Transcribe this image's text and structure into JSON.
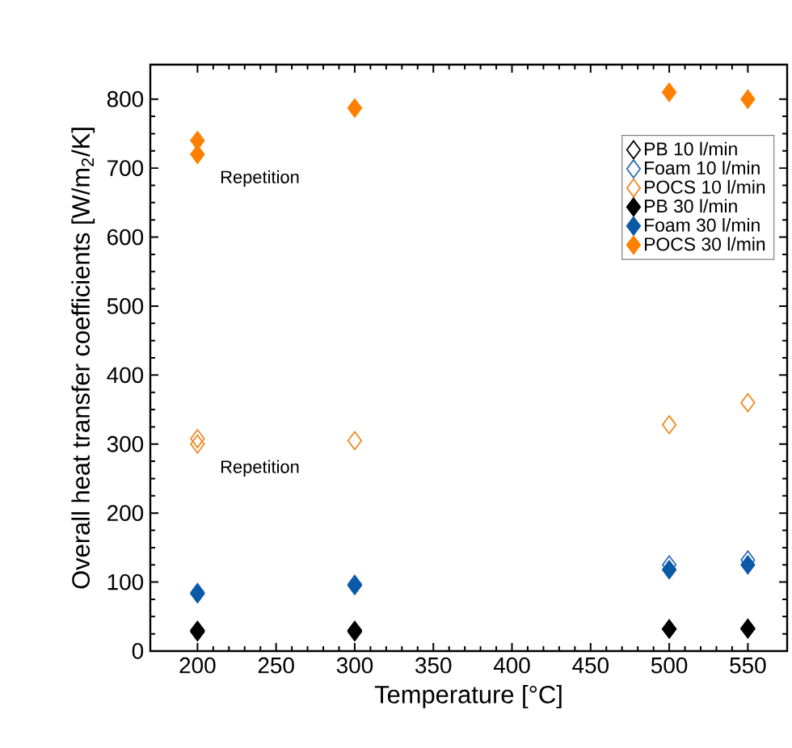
{
  "chart_data": {
    "type": "scatter",
    "xlabel": "Temperature [°C]",
    "ylabel": "Overall heat transfer coefficients [W/m$_{2}$/K]",
    "xlim": [
      170,
      575
    ],
    "ylim": [
      0,
      850
    ],
    "xticks": [
      200,
      250,
      300,
      350,
      400,
      450,
      500,
      550
    ],
    "yticks": [
      0,
      100,
      200,
      300,
      400,
      500,
      600,
      700,
      800
    ],
    "legend": "right",
    "grid": false,
    "series": [
      {
        "name": "PB 10 l/min",
        "color": "#000000",
        "marker": "diamond-open",
        "x": [
          200,
          300,
          500,
          550
        ],
        "values": [
          30,
          30,
          32,
          33
        ]
      },
      {
        "name": "Foam 10 l/min",
        "color": "#2f6db5",
        "marker": "diamond-open",
        "x": [
          200,
          300,
          500,
          550
        ],
        "values": [
          85,
          97,
          125,
          132
        ]
      },
      {
        "name": "POCS 10 l/min",
        "color": "#f08a24",
        "marker": "diamond-open",
        "x": [
          200,
          200,
          300,
          500,
          550
        ],
        "values": [
          308,
          300,
          305,
          328,
          360
        ]
      },
      {
        "name": "PB 30 l/min",
        "color": "#000000",
        "marker": "diamond",
        "x": [
          200,
          300,
          500,
          550
        ],
        "values": [
          28,
          28,
          32,
          32
        ]
      },
      {
        "name": "Foam 30 l/min",
        "color": "#0b5aa8",
        "marker": "diamond",
        "x": [
          200,
          300,
          500,
          550
        ],
        "values": [
          83,
          95,
          118,
          125
        ]
      },
      {
        "name": "POCS 30 l/min",
        "color": "#ff8000",
        "marker": "diamond",
        "x": [
          200,
          200,
          300,
          500,
          550
        ],
        "values": [
          740,
          720,
          787,
          810,
          800
        ]
      }
    ],
    "annotations": [
      {
        "text": "Repetition",
        "x": 200,
        "y": 720
      },
      {
        "text": "Repetition",
        "x": 200,
        "y": 300
      }
    ]
  }
}
